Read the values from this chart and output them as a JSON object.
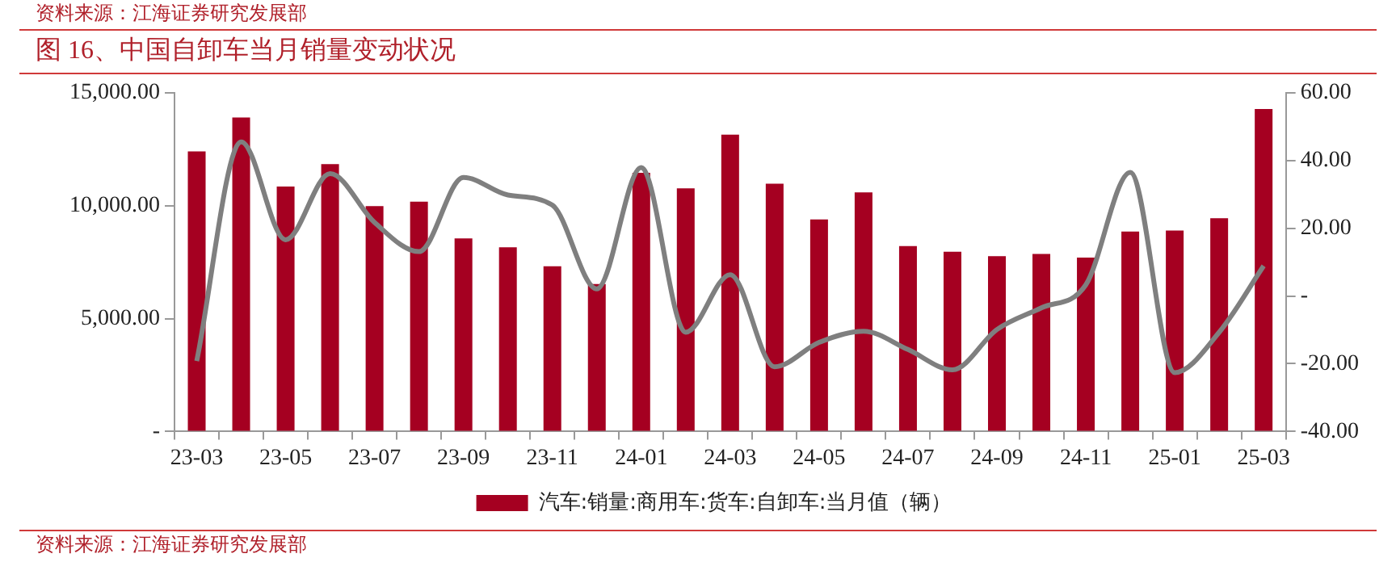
{
  "chart_data": {
    "type": "bar",
    "title": "图 16、中国自卸车当月销量变动状况",
    "annotations": [
      "资料来源：江海证券研究发展部",
      "资料来源：江海证券研究发展部"
    ],
    "categories": [
      "23-03",
      null,
      "23-05",
      null,
      "23-07",
      null,
      "23-09",
      null,
      "23-11",
      null,
      "24-01",
      null,
      "24-03",
      null,
      "24-05",
      null,
      "24-07",
      null,
      "24-09",
      null,
      "24-11",
      null,
      "25-01",
      null,
      "25-03"
    ],
    "series": [
      {
        "name": "汽车:销量:商用车:货车:自卸车:当月值（辆）",
        "color": "#a50021",
        "values": [
          12400,
          13900,
          10850,
          11840,
          9980,
          10180,
          8550,
          8160,
          7320,
          6530,
          11450,
          10770,
          13140,
          10970,
          9390,
          10590,
          8210,
          7960,
          7760,
          7860,
          7700,
          8850,
          8900,
          9440,
          14280
        ]
      },
      {
        "type": "line",
        "axis": "y2",
        "color": "#7f7f7f",
        "values": [
          -19.2,
          45.5,
          16.6,
          36.1,
          21.7,
          13.1,
          35.0,
          29.8,
          26.8,
          2.1,
          37.9,
          -10.7,
          6.3,
          -20.9,
          -13.7,
          -10.4,
          -15.8,
          -21.8,
          -9.9,
          -3.5,
          3.3,
          36.5,
          -22.6,
          -10.7,
          8.9
        ]
      }
    ],
    "ylim": [
      0,
      15000
    ],
    "yticks": [
      {
        "value": 0,
        "label": "-"
      },
      {
        "value": 5000,
        "label": "5,000.00"
      },
      {
        "value": 10000,
        "label": "10,000.00"
      },
      {
        "value": 15000,
        "label": "15,000.00"
      }
    ],
    "y2lim": [
      -40,
      60
    ],
    "y2ticks": [
      {
        "value": -40,
        "label": "-40.00"
      },
      {
        "value": -20,
        "label": "-20.00"
      },
      {
        "value": 0,
        "label": "-"
      },
      {
        "value": 20,
        "label": "20.00"
      },
      {
        "value": 40,
        "label": "40.00"
      },
      {
        "value": 60,
        "label": "60.00"
      }
    ],
    "grid": false,
    "legend": "bottom",
    "marker": "none"
  }
}
